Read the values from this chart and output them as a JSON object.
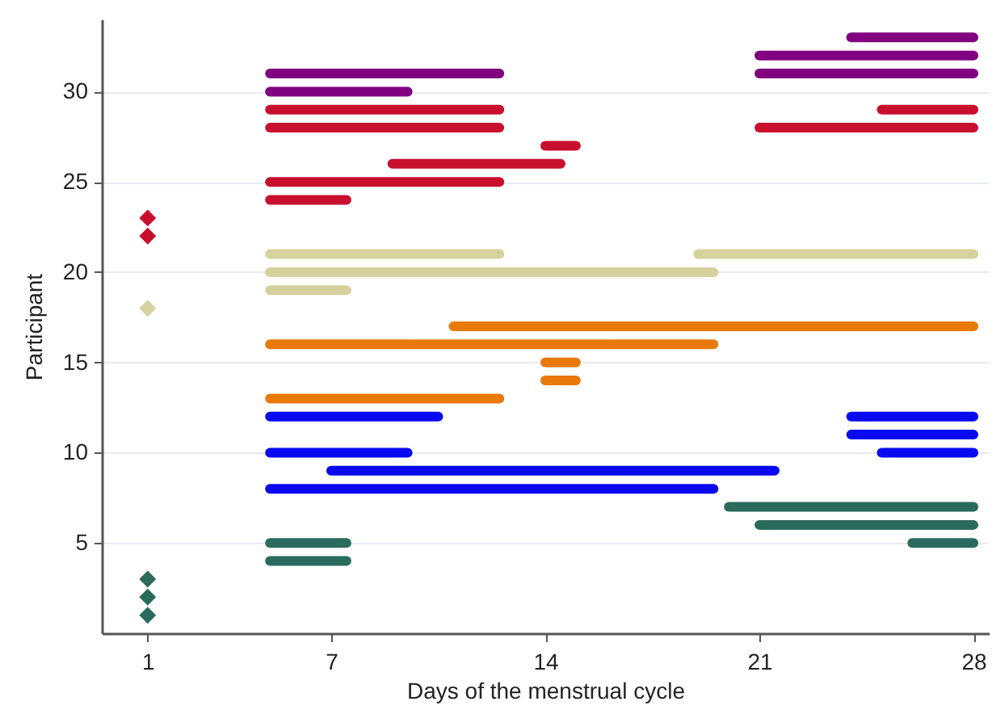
{
  "chart_data": {
    "type": "line",
    "xlabel": "Days of the menstrual cycle",
    "ylabel": "Participant",
    "xlim": [
      -0.5,
      28.5
    ],
    "xticks": [
      1,
      7,
      14,
      21,
      28
    ],
    "ylim": [
      0,
      34
    ],
    "yticks": [
      5,
      10,
      15,
      20,
      25,
      30
    ],
    "grid": "y",
    "line_style": "solid",
    "series": [
      {
        "type": "line",
        "color": "#800080",
        "x": [
          24,
          28
        ],
        "values": [
          33,
          33
        ]
      },
      {
        "type": "line",
        "color": "#800080",
        "x": [
          21,
          28
        ],
        "values": [
          32,
          32
        ]
      },
      {
        "type": "line",
        "color": "#800080",
        "x": [
          5,
          12.5
        ],
        "values": [
          31,
          31
        ]
      },
      {
        "type": "line",
        "color": "#800080",
        "x": [
          21,
          28
        ],
        "values": [
          31,
          31
        ]
      },
      {
        "type": "line",
        "color": "#800080",
        "x": [
          5,
          9.5
        ],
        "values": [
          30,
          30
        ]
      },
      {
        "type": "line",
        "color": "#c8102e",
        "x": [
          5,
          12.5
        ],
        "values": [
          29,
          29
        ]
      },
      {
        "type": "line",
        "color": "#c8102e",
        "x": [
          25,
          28
        ],
        "values": [
          29,
          29
        ]
      },
      {
        "type": "line",
        "color": "#c8102e",
        "x": [
          5,
          12.5
        ],
        "values": [
          28,
          28
        ]
      },
      {
        "type": "line",
        "color": "#c8102e",
        "x": [
          21,
          28
        ],
        "values": [
          28,
          28
        ]
      },
      {
        "type": "line",
        "color": "#c8102e",
        "x": [
          14,
          15
        ],
        "values": [
          27,
          27
        ]
      },
      {
        "type": "line",
        "color": "#c8102e",
        "x": [
          9,
          14.5
        ],
        "values": [
          26,
          26
        ]
      },
      {
        "type": "line",
        "color": "#c8102e",
        "x": [
          5,
          12.5
        ],
        "values": [
          25,
          25
        ]
      },
      {
        "type": "line",
        "color": "#c8102e",
        "x": [
          5,
          7.5
        ],
        "values": [
          24,
          24
        ]
      },
      {
        "type": "line",
        "color": "#d6d19d",
        "x": [
          5,
          12.5
        ],
        "values": [
          21,
          21
        ]
      },
      {
        "type": "line",
        "color": "#d6d19d",
        "x": [
          19,
          28
        ],
        "values": [
          21,
          21
        ]
      },
      {
        "type": "line",
        "color": "#d6d19d",
        "x": [
          5,
          19.5
        ],
        "values": [
          20,
          20
        ]
      },
      {
        "type": "line",
        "color": "#d6d19d",
        "x": [
          5,
          7.5
        ],
        "values": [
          19,
          19
        ]
      },
      {
        "type": "line",
        "color": "#e8790a",
        "x": [
          11,
          28
        ],
        "values": [
          17,
          17
        ]
      },
      {
        "type": "line",
        "color": "#e8790a",
        "x": [
          5,
          19.5
        ],
        "values": [
          16,
          16
        ]
      },
      {
        "type": "line",
        "color": "#e8790a",
        "x": [
          14,
          15
        ],
        "values": [
          15,
          15
        ]
      },
      {
        "type": "line",
        "color": "#e8790a",
        "x": [
          14,
          15
        ],
        "values": [
          14,
          14
        ]
      },
      {
        "type": "line",
        "color": "#e8790a",
        "x": [
          5,
          12.5
        ],
        "values": [
          13,
          13
        ]
      },
      {
        "type": "line",
        "color": "#0a0af0",
        "x": [
          5,
          10.5
        ],
        "values": [
          12,
          12
        ]
      },
      {
        "type": "line",
        "color": "#0a0af0",
        "x": [
          24,
          28
        ],
        "values": [
          12,
          12
        ]
      },
      {
        "type": "line",
        "color": "#0a0af0",
        "x": [
          24,
          28
        ],
        "values": [
          11,
          11
        ]
      },
      {
        "type": "line",
        "color": "#0a0af0",
        "x": [
          5,
          9.5
        ],
        "values": [
          10,
          10
        ]
      },
      {
        "type": "line",
        "color": "#0a0af0",
        "x": [
          25,
          28
        ],
        "values": [
          10,
          10
        ]
      },
      {
        "type": "line",
        "color": "#0a0af0",
        "x": [
          7,
          21.5
        ],
        "values": [
          9,
          9
        ]
      },
      {
        "type": "line",
        "color": "#0a0af0",
        "x": [
          5,
          19.5
        ],
        "values": [
          8,
          8
        ]
      },
      {
        "type": "line",
        "color": "#2a6b5e",
        "x": [
          20,
          28
        ],
        "values": [
          7,
          7
        ]
      },
      {
        "type": "line",
        "color": "#2a6b5e",
        "x": [
          21,
          28
        ],
        "values": [
          6,
          6
        ]
      },
      {
        "type": "line",
        "color": "#2a6b5e",
        "x": [
          5,
          7.5
        ],
        "values": [
          5,
          5
        ]
      },
      {
        "type": "line",
        "color": "#2a6b5e",
        "x": [
          26,
          28
        ],
        "values": [
          5,
          5
        ]
      },
      {
        "type": "line",
        "color": "#2a6b5e",
        "x": [
          5,
          7.5
        ],
        "values": [
          4,
          4
        ]
      },
      {
        "type": "scatter",
        "marker": "diamond",
        "color": "#c8102e",
        "x": [
          1,
          1
        ],
        "values": [
          23,
          22
        ]
      },
      {
        "type": "scatter",
        "marker": "diamond",
        "color": "#d6d19d",
        "x": [
          1
        ],
        "values": [
          18
        ]
      },
      {
        "type": "scatter",
        "marker": "diamond",
        "color": "#2a6b5e",
        "x": [
          1,
          1,
          1
        ],
        "values": [
          3,
          2,
          1
        ]
      }
    ]
  }
}
